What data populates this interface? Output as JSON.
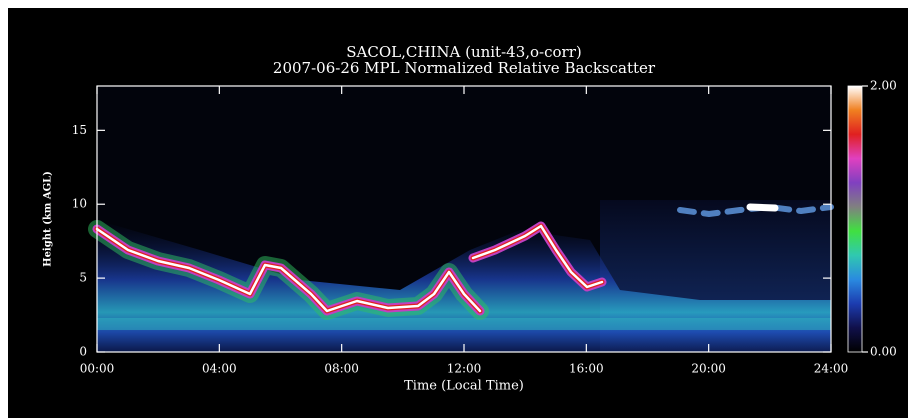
{
  "chart_data": {
    "type": "heatmap",
    "title": "SACOL,CHINA (unit-43,o-corr)",
    "subtitle": "2007-06-26 MPL Normalized Relative Backscatter",
    "x_label": "Time (Local Time)",
    "y_label": "Height (km AGL)",
    "xlim": [
      0,
      24
    ],
    "xticks": [
      {
        "value": 0,
        "label": "00:00"
      },
      {
        "value": 4,
        "label": "04:00"
      },
      {
        "value": 8,
        "label": "08:00"
      },
      {
        "value": 12,
        "label": "12:00"
      },
      {
        "value": 16,
        "label": "16:00"
      },
      {
        "value": 20,
        "label": "20:00"
      },
      {
        "value": 24,
        "label": "24:00"
      }
    ],
    "ylim": [
      0,
      18
    ],
    "yticks": [
      0,
      5,
      10,
      15
    ],
    "colorbar_lim": [
      0,
      2
    ],
    "colorbar_ticks": [
      {
        "value": 0,
        "label": "0.00"
      },
      {
        "value": 2,
        "label": "2.00"
      }
    ],
    "colormap": [
      "#000000",
      "#10104a",
      "#1c3cb0",
      "#2a8ae0",
      "#30c8b0",
      "#40e040",
      "#808080",
      "#8040c0",
      "#e040c0",
      "#e02020",
      "#f08020",
      "#ffffff"
    ]
  }
}
